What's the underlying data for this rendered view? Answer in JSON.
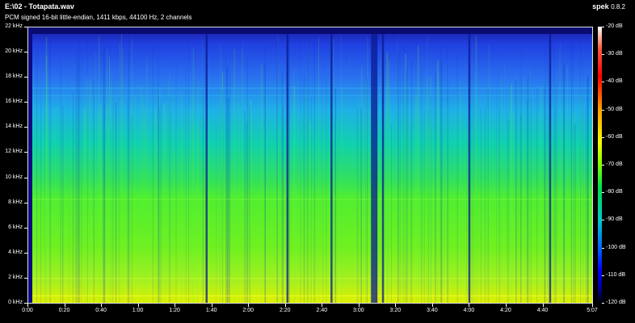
{
  "window": {
    "file_title": "E:\\02 - Totapata.wav",
    "file_info": "PCM signed 16-bit little-endian, 1411 kbps, 44100 Hz, 2 channels",
    "app_name": "spek",
    "app_version": "0.8.2"
  },
  "frequency_axis": {
    "labels": [
      "22 kHz",
      "20 kHz",
      "18 kHz",
      "16 kHz",
      "14 kHz",
      "12 kHz",
      "10 kHz",
      "8 kHz",
      "6 kHz",
      "4 kHz",
      "2 kHz",
      "0 kHz"
    ]
  },
  "time_axis": {
    "labels": [
      "0:00",
      "0:20",
      "0:40",
      "1:00",
      "1:20",
      "1:40",
      "2:00",
      "2:20",
      "2:40",
      "3:00",
      "3:20",
      "3:40",
      "4:00",
      "4:20",
      "4:40",
      "5:07"
    ],
    "seconds": [
      0,
      20,
      40,
      60,
      80,
      100,
      120,
      140,
      160,
      180,
      200,
      220,
      240,
      260,
      280,
      307
    ],
    "duration_seconds": 307
  },
  "color_scale": {
    "labels": [
      "-20 dB",
      "-30 dB",
      "-40 dB",
      "-50 dB",
      "-60 dB",
      "-70 dB",
      "-80 dB",
      "-90 dB",
      "-100 dB",
      "-110 dB",
      "-120 dB"
    ]
  },
  "spectrogram": {
    "dark_gaps_seconds": [
      97,
      141,
      165,
      187,
      193,
      240,
      284
    ],
    "bright_band_khz": [
      4,
      9
    ],
    "cutoff_khz": 21.5
  }
}
